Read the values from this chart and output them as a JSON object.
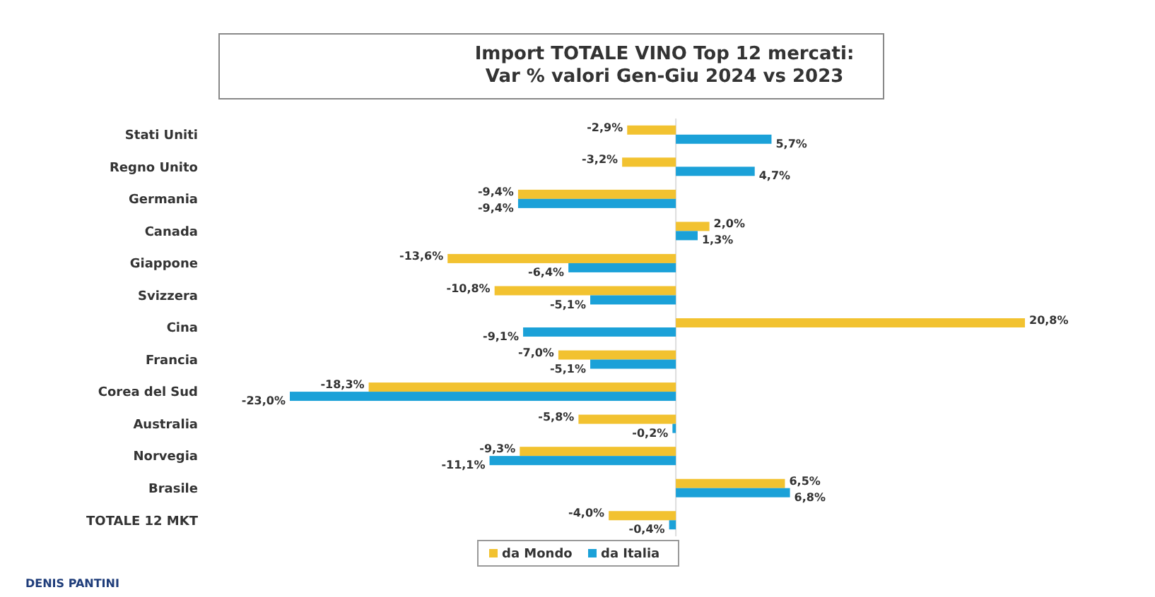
{
  "chart_data": {
    "type": "bar",
    "orientation": "horizontal",
    "title": "Import TOTALE VINO Top 12 mercati:\nVar % valori Gen-Giu 2024 vs 2023",
    "categories": [
      "Stati Uniti",
      "Regno Unito",
      "Germania",
      "Canada",
      "Giappone",
      "Svizzera",
      "Cina",
      "Francia",
      "Corea del Sud",
      "Australia",
      "Norvegia",
      "Brasile",
      "TOTALE 12 MKT"
    ],
    "series": [
      {
        "name": "da Mondo",
        "color": "#f2c230",
        "values": [
          -2.9,
          -3.2,
          -9.4,
          2.0,
          -13.6,
          -10.8,
          20.8,
          -7.0,
          -18.3,
          -5.8,
          -9.3,
          6.5,
          -4.0
        ],
        "value_labels": [
          "-2,9%",
          "-3,2%",
          "-9,4%",
          "2,0%",
          "-13,6%",
          "-10,8%",
          "20,8%",
          "-7,0%",
          "-18,3%",
          "-5,8%",
          "-9,3%",
          "6,5%",
          "-4,0%"
        ]
      },
      {
        "name": "da Italia",
        "color": "#1ba1d8",
        "values": [
          5.7,
          4.7,
          -9.4,
          1.3,
          -6.4,
          -5.1,
          -9.1,
          -5.1,
          -23.0,
          -0.2,
          -11.1,
          6.8,
          -0.4
        ],
        "value_labels": [
          "5,7%",
          "4,7%",
          "-9,4%",
          "1,3%",
          "-6,4%",
          "-5,1%",
          "-9,1%",
          "-5,1%",
          "-23,0%",
          "-0,2%",
          "-11,1%",
          "6,8%",
          "-0,4%"
        ]
      }
    ],
    "tick_labels": "y",
    "legend": "bottom",
    "annotations": [
      "DENIS PANTINI"
    ]
  }
}
